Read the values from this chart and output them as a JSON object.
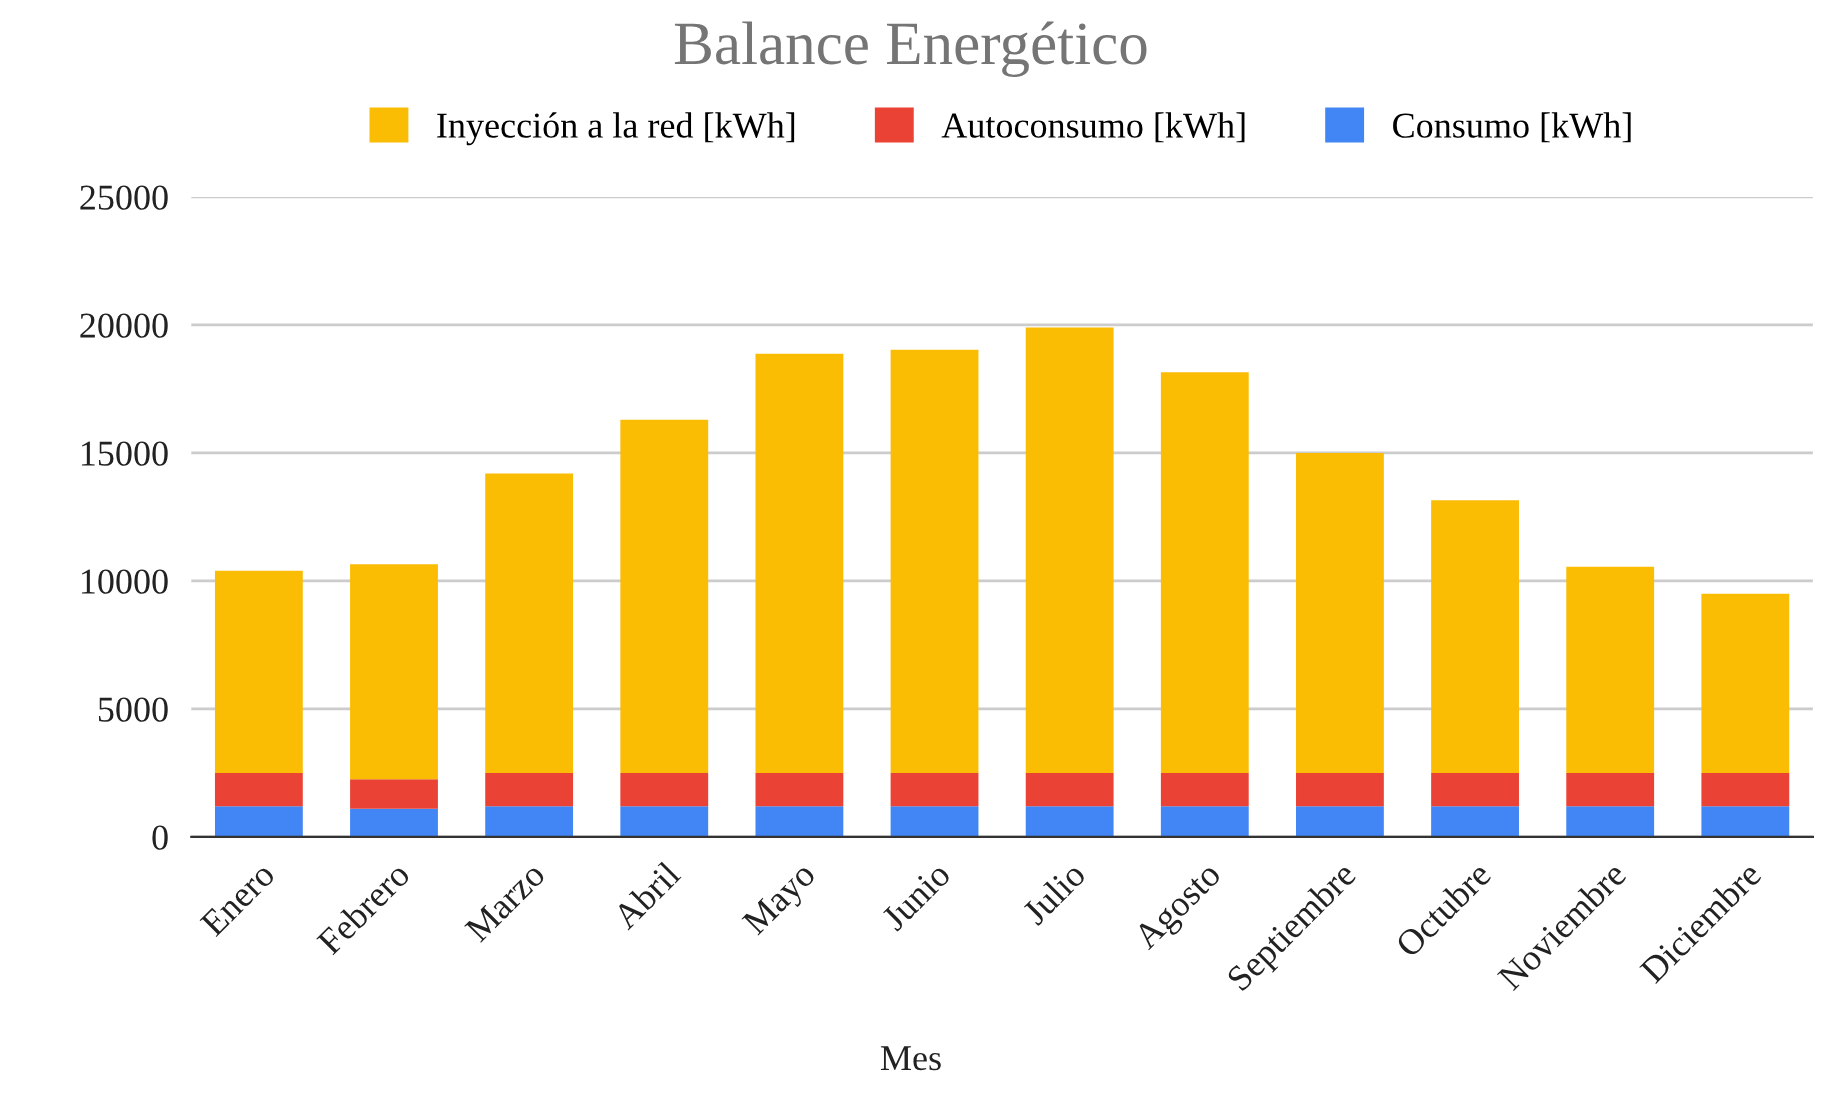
{
  "chart_data": {
    "type": "bar",
    "stacked": true,
    "title": "Balance Energético",
    "xlabel": "Mes",
    "categories": [
      "Enero",
      "Febrero",
      "Marzo",
      "Abril",
      "Mayo",
      "Junio",
      "Julio",
      "Agosto",
      "Septiembre",
      "Octubre",
      "Noviembre",
      "Diciembre"
    ],
    "series": [
      {
        "name": "Consumo [kWh]",
        "color": "#4285f4",
        "values": [
          1200,
          1100,
          1200,
          1200,
          1200,
          1200,
          1200,
          1200,
          1200,
          1200,
          1200,
          1200
        ]
      },
      {
        "name": "Autoconsumo [kWh]",
        "color": "#ea4335",
        "values": [
          1300,
          1150,
          1300,
          1300,
          1300,
          1300,
          1300,
          1300,
          1300,
          1300,
          1300,
          1300
        ]
      },
      {
        "name": "Inyección a la red [kWh]",
        "color": "#fbbc04",
        "values": [
          7900,
          8400,
          11700,
          13800,
          16370,
          16530,
          17400,
          15650,
          12500,
          10650,
          8050,
          7000
        ]
      }
    ],
    "ylim": [
      0,
      25000
    ],
    "yticks": [
      0,
      5000,
      10000,
      15000,
      20000,
      25000
    ],
    "grid": "y",
    "legend": "top"
  }
}
